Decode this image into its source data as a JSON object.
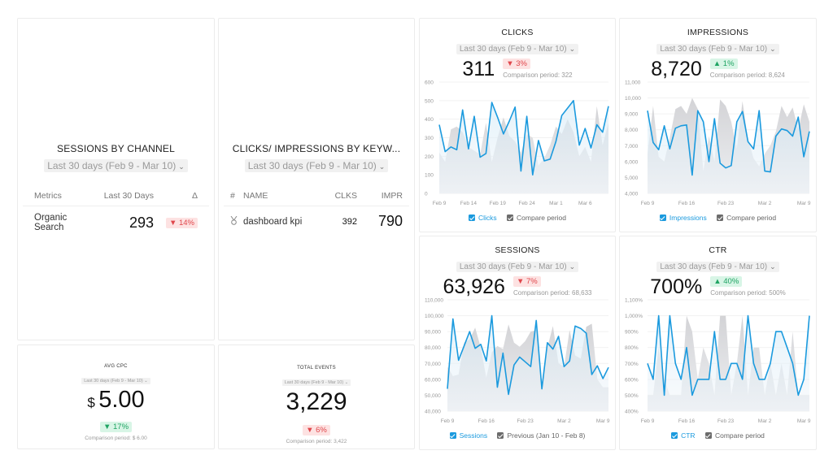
{
  "sessions_by_channel": {
    "title": "SESSIONS BY CHANNEL",
    "date_range": "Last 30 days (Feb 9 - Mar 10)",
    "columns": [
      "Metrics",
      "Last 30 Days",
      "Δ"
    ],
    "rows": [
      {
        "metric": "Organic Search",
        "value": "293",
        "delta": "▼ 14%",
        "delta_dir": "down"
      }
    ]
  },
  "keywords": {
    "title": "CLICKS/ IMPRESSIONS BY KEYW...",
    "date_range": "Last 30 days (Feb 9 - Mar 10)",
    "columns": [
      "#",
      "NAME",
      "CLKS",
      "IMPR"
    ],
    "rows": [
      {
        "icon": "medal-icon",
        "name": "dashboard kpi",
        "clicks": "392",
        "impressions": "790"
      }
    ]
  },
  "avg_cpc": {
    "title": "AVG CPC",
    "date_range": "Last 30 days (Feb 9 - Mar 10)",
    "currency": "$",
    "value": "5.00",
    "delta": "▼ 17%",
    "delta_dir": "down-good",
    "comparison": "Comparison period: $ 6.00"
  },
  "total_events": {
    "title": "TOTAL EVENTS",
    "date_range": "Last 30 days (Feb 9 - Mar 10)",
    "value": "3,229",
    "delta": "▼ 6%",
    "delta_dir": "down",
    "comparison": "Comparison period: 3,422"
  },
  "colors": {
    "primary_line": "#1b9ade",
    "compare_fill": "#d9d9db",
    "negative": "#e0474c",
    "positive": "#1fa463"
  },
  "charts": {
    "clicks": {
      "title": "CLICKS",
      "date_range": "Last 30 days (Feb 9 - Mar 10)",
      "value": "311",
      "delta": "▼ 3%",
      "delta_dir": "down",
      "comparison": "Comparison period: 322",
      "legend_primary": "Clicks",
      "legend_compare": "Compare period"
    },
    "impressions": {
      "title": "IMPRESSIONS",
      "date_range": "Last 30 days (Feb 9 - Mar 10)",
      "value": "8,720",
      "delta": "▲ 1%",
      "delta_dir": "up",
      "comparison": "Comparison period: 8,624",
      "legend_primary": "Impressions",
      "legend_compare": "Compare period"
    },
    "sessions": {
      "title": "SESSIONS",
      "date_range": "Last 30 days (Feb 9 - Mar 10)",
      "value": "63,926",
      "delta": "▼ 7%",
      "delta_dir": "down",
      "comparison": "Comparison period: 68,633",
      "legend_primary": "Sessions",
      "legend_compare": "Previous (Jan 10 - Feb 8)"
    },
    "ctr": {
      "title": "CTR",
      "date_range": "Last 30 days (Feb 9 - Mar 10)",
      "value": "700%",
      "delta": "▲ 40%",
      "delta_dir": "up",
      "comparison": "Comparison period: 500%",
      "legend_primary": "CTR",
      "legend_compare": "Compare period"
    }
  },
  "chart_data": [
    {
      "type": "line",
      "title": "CLICKS",
      "xlabel": "",
      "ylabel": "",
      "ylim": [
        0,
        600
      ],
      "yticks": [
        "0",
        "100",
        "200",
        "300",
        "400",
        "500",
        "600"
      ],
      "xticks": [
        "Feb 9",
        "Feb 14",
        "Feb 19",
        "Feb 24",
        "Mar 1",
        "Mar 6"
      ],
      "xtick_index": [
        0,
        5,
        10,
        15,
        20,
        25
      ],
      "grid": true,
      "legend": [
        "Clicks",
        "Compare period"
      ],
      "series": [
        {
          "name": "Clicks",
          "values": [
            370,
            225,
            250,
            235,
            450,
            240,
            415,
            195,
            215,
            490,
            410,
            320,
            390,
            465,
            120,
            415,
            100,
            285,
            175,
            185,
            280,
            420,
            460,
            500,
            260,
            350,
            245,
            370,
            330,
            470
          ]
        },
        {
          "name": "Compare period",
          "values": [
            220,
            170,
            345,
            360,
            330,
            250,
            230,
            210,
            380,
            170,
            300,
            410,
            310,
            280,
            220,
            320,
            300,
            150,
            190,
            260,
            360,
            320,
            400,
            330,
            200,
            250,
            170,
            470,
            260,
            380
          ]
        }
      ]
    },
    {
      "type": "line",
      "title": "IMPRESSIONS",
      "xlabel": "",
      "ylabel": "",
      "ylim": [
        4000,
        11000
      ],
      "yticks": [
        "4,000",
        "5,000",
        "6,000",
        "7,000",
        "8,000",
        "9,000",
        "10,000",
        "11,000"
      ],
      "xticks": [
        "Feb 9",
        "Feb 16",
        "Feb 23",
        "Mar 2",
        "Mar 9"
      ],
      "xtick_index": [
        0,
        7,
        14,
        21,
        28
      ],
      "grid": true,
      "legend": [
        "Impressions",
        "Compare period"
      ],
      "series": [
        {
          "name": "Impressions",
          "values": [
            9200,
            7200,
            6750,
            8250,
            6800,
            8100,
            8250,
            8300,
            5150,
            9200,
            8500,
            6000,
            8700,
            5900,
            5600,
            5750,
            8500,
            9150,
            7250,
            6800,
            9200,
            5400,
            5350,
            7600,
            8050,
            7950,
            7600,
            8800,
            6300,
            7900
          ]
        },
        {
          "name": "Compare period",
          "values": [
            6500,
            9500,
            6300,
            6000,
            7500,
            9300,
            9500,
            9000,
            10000,
            9300,
            5400,
            7600,
            6000,
            9900,
            9500,
            8500,
            6800,
            9800,
            7400,
            6200,
            5700,
            6500,
            7000,
            7900,
            9500,
            8800,
            9400,
            8000,
            9600,
            8500
          ]
        }
      ]
    },
    {
      "type": "line",
      "title": "SESSIONS",
      "xlabel": "",
      "ylabel": "",
      "ylim": [
        40000,
        110000
      ],
      "yticks": [
        "40,000",
        "50,000",
        "60,000",
        "70,000",
        "80,000",
        "90,000",
        "100,000",
        "110,000"
      ],
      "xticks": [
        "Feb 9",
        "Feb 16",
        "Feb 23",
        "Mar 2",
        "Mar 9"
      ],
      "xtick_index": [
        0,
        7,
        14,
        21,
        28
      ],
      "grid": true,
      "legend": [
        "Sessions",
        "Previous (Jan 10 - Feb 8)"
      ],
      "series": [
        {
          "name": "Sessions",
          "values": [
            54000,
            98000,
            72000,
            81000,
            90000,
            79500,
            82000,
            71500,
            100000,
            55000,
            76500,
            50500,
            69000,
            74000,
            71000,
            68000,
            97000,
            54000,
            83000,
            79000,
            87000,
            68000,
            71500,
            93500,
            92000,
            89000,
            63000,
            68500,
            60500,
            67500
          ]
        },
        {
          "name": "Previous (Jan 10 - Feb 8)",
          "values": [
            68000,
            62000,
            63000,
            83000,
            85000,
            92500,
            80000,
            61000,
            77000,
            81000,
            79000,
            94500,
            83000,
            80500,
            84000,
            90000,
            91000,
            57000,
            80000,
            93500,
            70000,
            68000,
            91000,
            75000,
            73000,
            93000,
            95000,
            60000,
            55000,
            55000
          ]
        }
      ]
    },
    {
      "type": "line",
      "title": "CTR",
      "xlabel": "",
      "ylabel": "",
      "ylim": [
        400,
        1100
      ],
      "yticks": [
        "400%",
        "500%",
        "600%",
        "700%",
        "800%",
        "900%",
        "1,000%",
        "1,100%"
      ],
      "xticks": [
        "Feb 9",
        "Feb 16",
        "Feb 23",
        "Mar 2",
        "Mar 9"
      ],
      "xtick_index": [
        0,
        7,
        14,
        21,
        28
      ],
      "grid": true,
      "legend": [
        "CTR",
        "Compare period"
      ],
      "series": [
        {
          "name": "CTR",
          "values": [
            700,
            600,
            1000,
            500,
            1000,
            700,
            600,
            800,
            500,
            600,
            600,
            600,
            900,
            600,
            600,
            700,
            700,
            600,
            1000,
            700,
            600,
            600,
            700,
            900,
            900,
            800,
            700,
            500,
            600,
            1000
          ]
        },
        {
          "name": "Compare period",
          "values": [
            500,
            500,
            800,
            600,
            500,
            500,
            500,
            1000,
            900,
            600,
            800,
            700,
            500,
            1000,
            1000,
            500,
            700,
            1000,
            500,
            800,
            800,
            500,
            700,
            500,
            700,
            500,
            900,
            500,
            500,
            500
          ]
        }
      ]
    }
  ]
}
